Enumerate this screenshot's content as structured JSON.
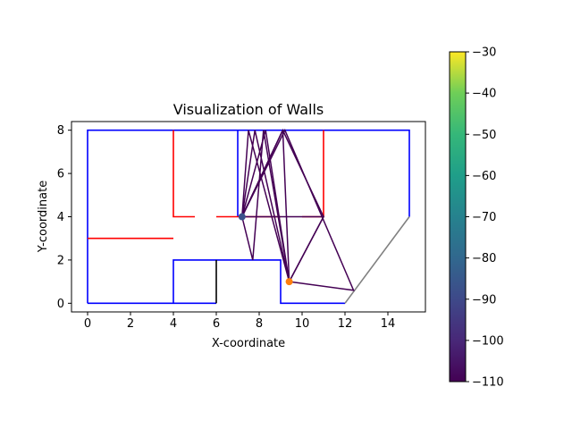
{
  "chart_data": {
    "type": "line",
    "title": "Visualization of Walls",
    "xlabel": "X-coordinate",
    "ylabel": "Y-coordinate",
    "xlim": [
      -0.75,
      15.75
    ],
    "ylim": [
      -0.4,
      8.4
    ],
    "xticks": [
      0,
      2,
      4,
      6,
      8,
      10,
      12,
      14
    ],
    "yticks": [
      0,
      2,
      4,
      6,
      8
    ],
    "grid": false,
    "walls": [
      {
        "color": "#0000ff",
        "points": [
          [
            0,
            0
          ],
          [
            0,
            8
          ],
          [
            15,
            8
          ],
          [
            15,
            4
          ]
        ]
      },
      {
        "color": "#0000ff",
        "points": [
          [
            0,
            0
          ],
          [
            6,
            0
          ]
        ]
      },
      {
        "color": "#0000ff",
        "points": [
          [
            4,
            0
          ],
          [
            4,
            2
          ],
          [
            9,
            2
          ],
          [
            9,
            0
          ],
          [
            12,
            0
          ]
        ]
      },
      {
        "color": "#0000ff",
        "points": [
          [
            7,
            8
          ],
          [
            7,
            4
          ]
        ]
      },
      {
        "color": "#000000",
        "points": [
          [
            6,
            0
          ],
          [
            6,
            2
          ]
        ]
      },
      {
        "color": "#808080",
        "points": [
          [
            12,
            0
          ],
          [
            15,
            4
          ]
        ]
      },
      {
        "color": "#ff0000",
        "points": [
          [
            0,
            3
          ],
          [
            4,
            3
          ]
        ]
      },
      {
        "color": "#ff0000",
        "points": [
          [
            4,
            8
          ],
          [
            4,
            4
          ],
          [
            5,
            4
          ]
        ]
      },
      {
        "color": "#ff0000",
        "points": [
          [
            6,
            4
          ],
          [
            9,
            4
          ]
        ]
      },
      {
        "color": "#ff0000",
        "points": [
          [
            10,
            4
          ],
          [
            11,
            4
          ],
          [
            11,
            8
          ]
        ]
      }
    ],
    "rays": [
      {
        "value": -110,
        "points": [
          [
            7.2,
            4
          ],
          [
            7.8,
            8
          ],
          [
            9.4,
            1
          ]
        ]
      },
      {
        "value": -110,
        "points": [
          [
            7.2,
            4
          ],
          [
            7.5,
            8
          ],
          [
            9.4,
            1
          ]
        ]
      },
      {
        "value": -110,
        "points": [
          [
            7.2,
            4
          ],
          [
            9.1,
            8
          ],
          [
            9.4,
            1
          ]
        ]
      },
      {
        "value": -110,
        "points": [
          [
            7.2,
            4
          ],
          [
            8.3,
            8
          ],
          [
            9.4,
            1
          ]
        ]
      },
      {
        "value": -110,
        "points": [
          [
            7.2,
            4
          ],
          [
            7.7,
            2
          ],
          [
            8.2,
            8
          ],
          [
            9.4,
            1
          ]
        ]
      },
      {
        "value": -110,
        "points": [
          [
            7.2,
            4
          ],
          [
            9.1,
            8
          ],
          [
            11,
            4
          ],
          [
            9.4,
            1
          ]
        ]
      },
      {
        "value": -110,
        "points": [
          [
            7.2,
            4
          ],
          [
            9.2,
            8
          ],
          [
            12.4,
            0.6
          ],
          [
            9.4,
            1
          ]
        ]
      },
      {
        "value": -110,
        "points": [
          [
            7.2,
            4
          ],
          [
            11,
            4
          ],
          [
            9.4,
            1
          ]
        ]
      }
    ],
    "points": [
      {
        "x": 7.2,
        "y": 4.0,
        "color": "#3b528b"
      },
      {
        "x": 9.4,
        "y": 1.0,
        "color": "#ff7f0e"
      }
    ],
    "colorbar": {
      "min": -110,
      "max": -30,
      "ticks": [
        -110,
        -100,
        -90,
        -80,
        -70,
        -60,
        -50,
        -40,
        -30
      ],
      "colormap": "viridis"
    }
  }
}
